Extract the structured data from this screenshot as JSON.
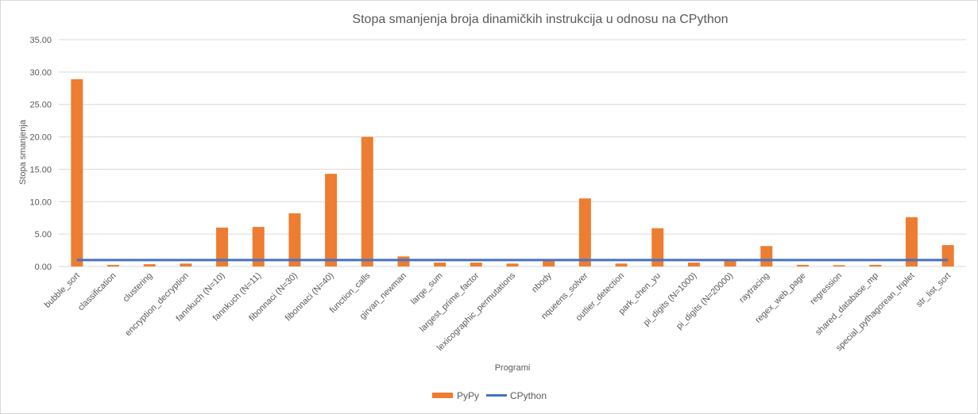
{
  "chart_data": {
    "type": "bar",
    "title": "Stopa smanjenja broja dinamičkih instrukcija u odnosu na CPython",
    "xlabel": "Programi",
    "ylabel": "Stopa smanjenja",
    "ylim": [
      0,
      35
    ],
    "yticks": [
      "0.00",
      "5.00",
      "10.00",
      "15.00",
      "20.00",
      "25.00",
      "30.00",
      "35.00"
    ],
    "grid": true,
    "legend_position": "bottom",
    "categories": [
      "bubble_sort",
      "classification",
      "clustering",
      "encryption_decryption",
      "fannkuch (N=10)",
      "fannkuch (N=11)",
      "fibonnaci (N=30)",
      "fibonnaci (N=40)",
      "function_calls",
      "girvan_newman",
      "large_sum",
      "largest_prime_factor",
      "lexicographic_permutations",
      "nbody",
      "nqueens_solver",
      "outlier_detection",
      "park_chen_yu",
      "pi_digits (N=1000)",
      "pi_digits (N=20000)",
      "raytracing",
      "regex_web_page",
      "regression",
      "shared_database_mp",
      "special_pythagorean_triplet",
      "str_list_sort"
    ],
    "series": [
      {
        "name": "PyPy",
        "kind": "bar",
        "color": "#ed7d31",
        "values": [
          28.9,
          0.25,
          0.35,
          0.45,
          6.0,
          6.1,
          8.2,
          14.3,
          20.0,
          1.55,
          0.6,
          0.6,
          0.45,
          0.95,
          10.5,
          0.45,
          5.9,
          0.6,
          0.9,
          3.15,
          0.25,
          0.2,
          0.25,
          7.6,
          3.3
        ]
      },
      {
        "name": "CPython",
        "kind": "line",
        "color": "#4472c4",
        "values": [
          1,
          1,
          1,
          1,
          1,
          1,
          1,
          1,
          1,
          1,
          1,
          1,
          1,
          1,
          1,
          1,
          1,
          1,
          1,
          1,
          1,
          1,
          1,
          1,
          1
        ]
      }
    ]
  }
}
